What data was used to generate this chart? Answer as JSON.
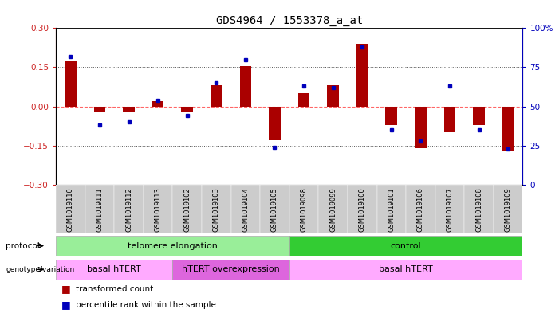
{
  "title": "GDS4964 / 1553378_a_at",
  "samples": [
    "GSM1019110",
    "GSM1019111",
    "GSM1019112",
    "GSM1019113",
    "GSM1019102",
    "GSM1019103",
    "GSM1019104",
    "GSM1019105",
    "GSM1019098",
    "GSM1019099",
    "GSM1019100",
    "GSM1019101",
    "GSM1019106",
    "GSM1019107",
    "GSM1019108",
    "GSM1019109"
  ],
  "red_bars": [
    0.175,
    -0.02,
    -0.02,
    0.02,
    -0.02,
    0.08,
    0.155,
    -0.13,
    0.05,
    0.08,
    0.24,
    -0.07,
    -0.16,
    -0.1,
    -0.07,
    -0.17
  ],
  "blue_dots": [
    82,
    38,
    40,
    54,
    44,
    65,
    80,
    24,
    63,
    62,
    88,
    35,
    28,
    63,
    35,
    23
  ],
  "ylim_left": [
    -0.3,
    0.3
  ],
  "ylim_right": [
    0,
    100
  ],
  "yticks_left": [
    -0.3,
    -0.15,
    0.0,
    0.15,
    0.3
  ],
  "yticks_right": [
    0,
    25,
    50,
    75,
    100
  ],
  "hlines_dotted": [
    0.15,
    -0.15
  ],
  "zero_line": 0.0,
  "protocol_groups": [
    {
      "label": "telomere elongation",
      "start": 0,
      "end": 8,
      "color": "#99EE99"
    },
    {
      "label": "control",
      "start": 8,
      "end": 16,
      "color": "#33CC33"
    }
  ],
  "genotype_groups": [
    {
      "label": "basal hTERT",
      "start": 0,
      "end": 4,
      "color": "#FFAAFF"
    },
    {
      "label": "hTERT overexpression",
      "start": 4,
      "end": 8,
      "color": "#DD66DD"
    },
    {
      "label": "basal hTERT",
      "start": 8,
      "end": 16,
      "color": "#FFAAFF"
    }
  ],
  "bar_color": "#AA0000",
  "dot_color": "#0000BB",
  "zero_line_color": "#FF6666",
  "hline_color": "#555555",
  "bg_color": "#ffffff",
  "left_axis_color": "#CC2222",
  "right_axis_color": "#0000BB",
  "title_fontsize": 10,
  "bar_width": 0.4
}
